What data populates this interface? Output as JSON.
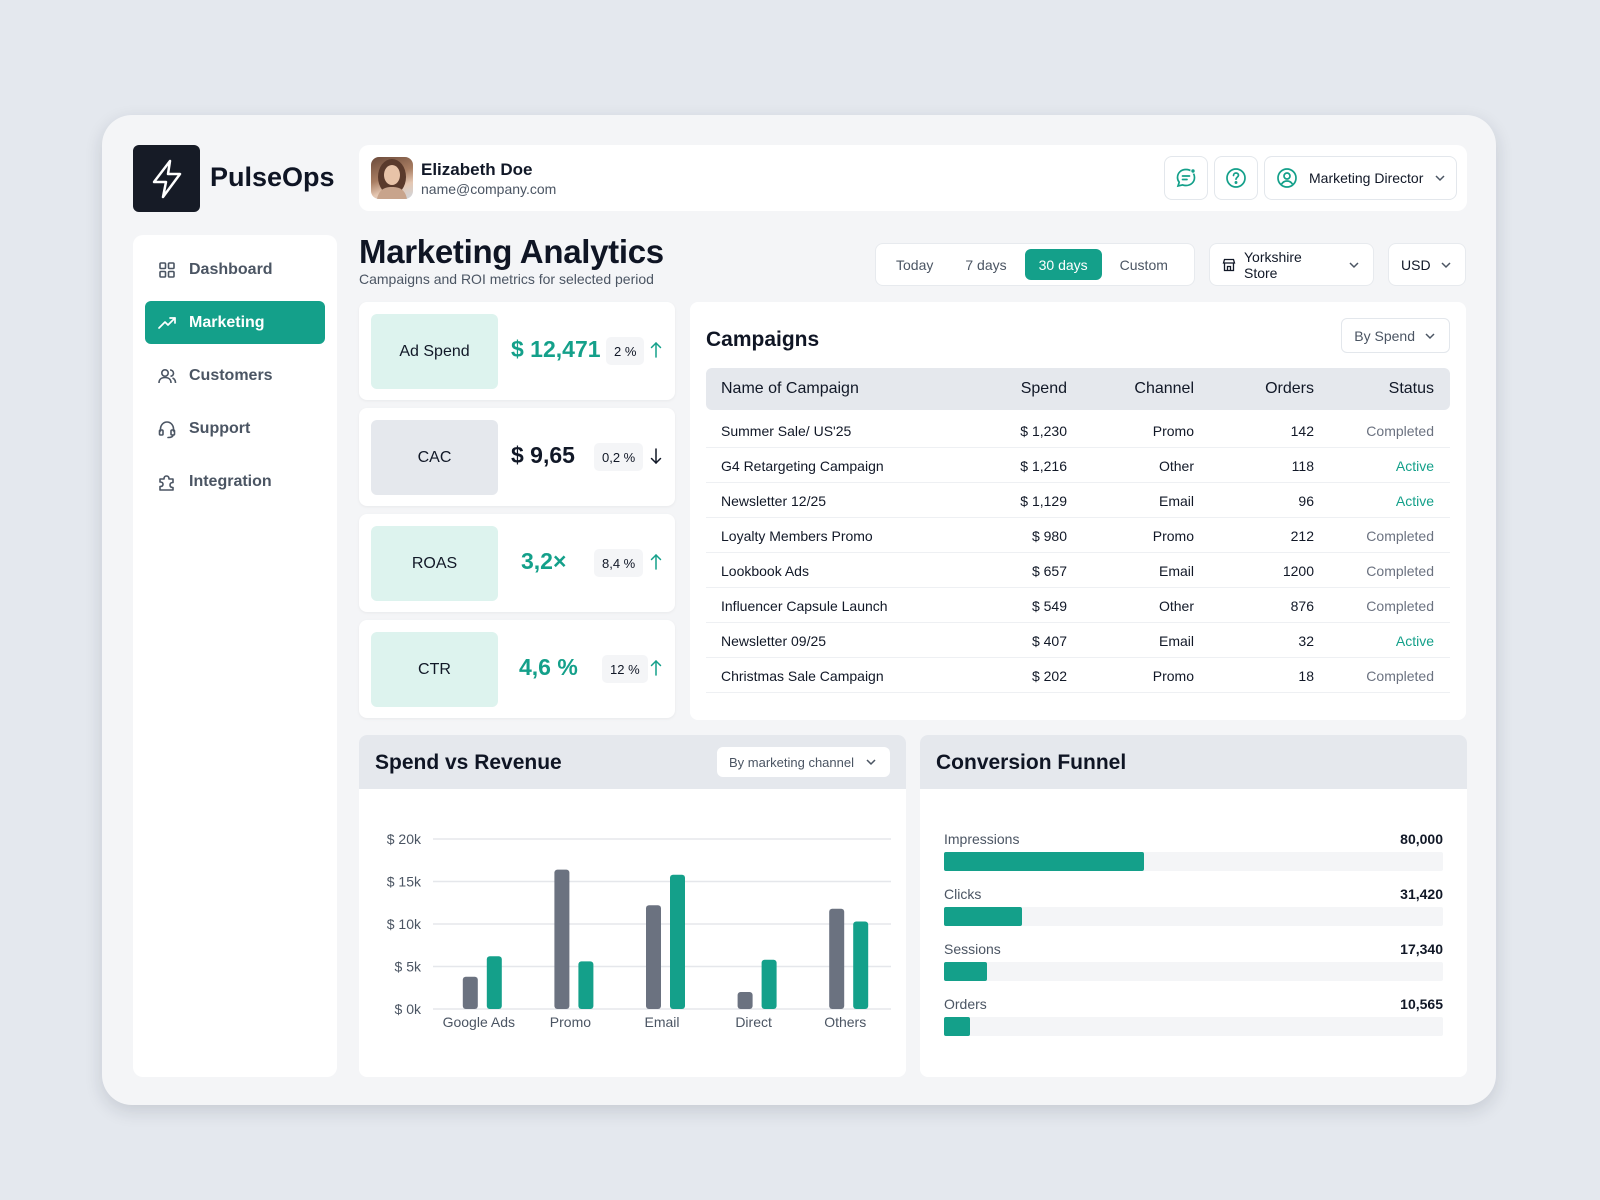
{
  "app": {
    "name": "PulseOps"
  },
  "user": {
    "name": "Elizabeth Doe",
    "email": "name@company.com",
    "role": "Marketing Director"
  },
  "sidebar": {
    "items": [
      {
        "label": "Dashboard",
        "icon": "grid-icon",
        "active": false
      },
      {
        "label": "Marketing",
        "icon": "trending-up-icon",
        "active": true
      },
      {
        "label": "Customers",
        "icon": "users-icon",
        "active": false
      },
      {
        "label": "Support",
        "icon": "headset-icon",
        "active": false
      },
      {
        "label": "Integration",
        "icon": "puzzle-icon",
        "active": false
      }
    ]
  },
  "page": {
    "title": "Marketing Analytics",
    "subtitle": "Campaigns and ROI metrics for selected period"
  },
  "filters": {
    "ranges": [
      "Today",
      "7 days",
      "30 days",
      "Custom"
    ],
    "selected_range": "30 days",
    "store": "Yorkshire Store",
    "currency": "USD"
  },
  "kpis": [
    {
      "label": "Ad Spend",
      "value": "$ 12,471",
      "delta": "2 %",
      "direction": "up"
    },
    {
      "label": "CAC",
      "value": "$ 9,65",
      "delta": "0,2 %",
      "direction": "down"
    },
    {
      "label": "ROAS",
      "value": "3,2×",
      "delta": "8,4 %",
      "direction": "up"
    },
    {
      "label": "CTR",
      "value": "4,6 %",
      "delta": "12 %",
      "direction": "up"
    }
  ],
  "campaigns": {
    "title": "Campaigns",
    "sort": "By Spend",
    "columns": [
      "Name of Campaign",
      "Spend",
      "Channel",
      "Orders",
      "Status"
    ],
    "rows": [
      [
        "Summer Sale/ US'25",
        "$ 1,230",
        "Promo",
        "142",
        "Completed"
      ],
      [
        "G4 Retargeting Campaign",
        "$ 1,216",
        "Other",
        "118",
        "Active"
      ],
      [
        "Newsletter 12/25",
        "$ 1,129",
        "Email",
        "96",
        "Active"
      ],
      [
        "Loyalty Members Promo",
        "$ 980",
        "Promo",
        "212",
        "Completed"
      ],
      [
        "Lookbook Ads",
        "$ 657",
        "Email",
        "1200",
        "Completed"
      ],
      [
        "Influencer Capsule Launch",
        "$ 549",
        "Other",
        "876",
        "Completed"
      ],
      [
        "Newsletter 09/25",
        "$ 407",
        "Email",
        "32",
        "Active"
      ],
      [
        "Christmas  Sale  Campaign",
        "$ 202",
        "Promo",
        "18",
        "Completed"
      ]
    ]
  },
  "spend_vs_revenue": {
    "title": "Spend vs Revenue",
    "filter": "By marketing channel"
  },
  "chart_data": {
    "type": "bar",
    "categories": [
      "Google Ads",
      "Promo",
      "Email",
      "Direct",
      "Others"
    ],
    "series": [
      {
        "values": [
          3.8,
          16.4,
          12.2,
          2.0,
          11.8
        ]
      },
      {
        "values": [
          6.2,
          5.6,
          15.8,
          5.8,
          10.3
        ]
      }
    ],
    "ylim": [
      0,
      20
    ],
    "yticks": [
      "$ 0k",
      "$ 5k",
      "$ 10k",
      "$ 15k",
      "$ 20k"
    ],
    "grid": true
  },
  "funnel": {
    "title": "Conversion Funnel",
    "max": 200000,
    "stages": [
      {
        "label": "Impressions",
        "value": "80,000",
        "number": 80000
      },
      {
        "label": "Clicks",
        "value": "31,420",
        "number": 31420
      },
      {
        "label": "Sessions",
        "value": "17,340",
        "number": 17340
      },
      {
        "label": "Orders",
        "value": "10,565",
        "number": 10565
      }
    ]
  },
  "colors": {
    "accent": "#14a08a",
    "spend": "#6b7280",
    "dark": "#161b26",
    "active_status": "#14a08a"
  }
}
